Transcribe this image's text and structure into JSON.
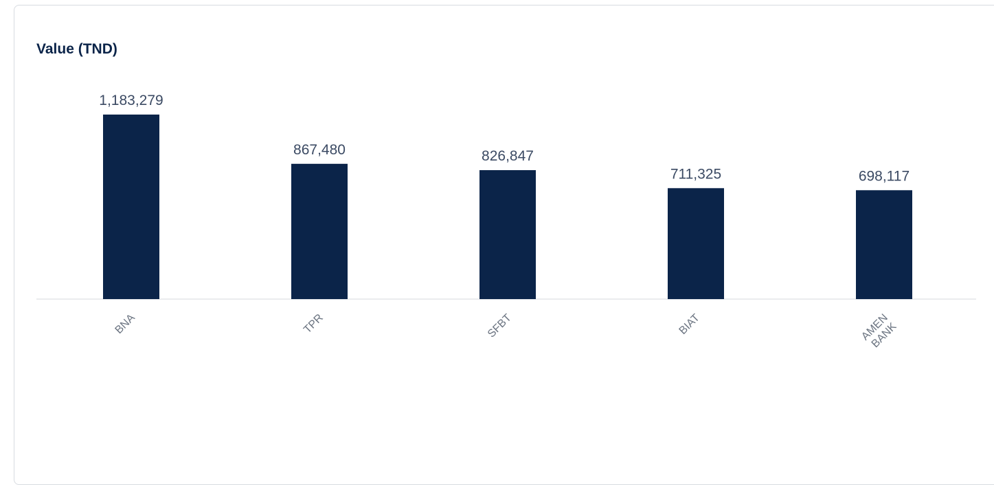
{
  "chart_data": {
    "type": "bar",
    "title": "Value (TND)",
    "categories": [
      "BNA",
      "TPR",
      "SFBT",
      "BIAT",
      "AMEN BANK"
    ],
    "category_lines": [
      [
        "BNA"
      ],
      [
        "TPR"
      ],
      [
        "SFBT"
      ],
      [
        "BIAT"
      ],
      [
        "AMEN",
        "BANK"
      ]
    ],
    "values": [
      1183279,
      867480,
      826847,
      711325,
      698117
    ],
    "value_labels": [
      "1,183,279",
      "867,480",
      "826,847",
      "711,325",
      "698,117"
    ],
    "ylim": [
      0,
      1300000
    ],
    "grid": false,
    "legend": "none",
    "bar_color": "#0b2449"
  }
}
